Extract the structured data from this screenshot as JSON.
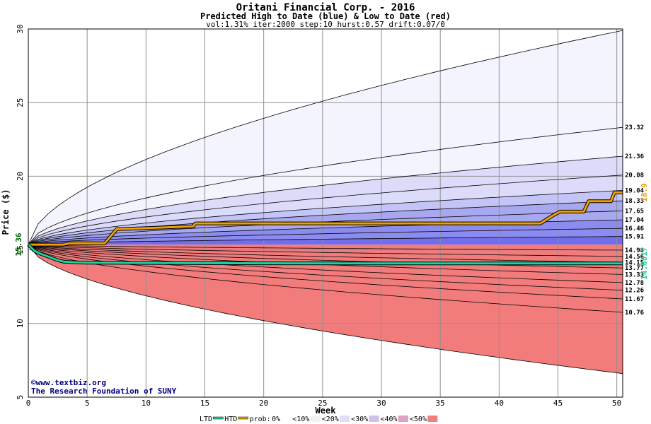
{
  "colors": {
    "high": "#f0a000",
    "low": "#20d0a0",
    "blue_bands": [
      "#f4f4ff",
      "#dcdcfa",
      "#c4c4f6",
      "#a8a8f0",
      "#8c8cf0",
      "#6f6fee"
    ],
    "red_bands": [
      "#fff0f0",
      "#fddede",
      "#fbc8c8",
      "#f8afaf",
      "#f59595",
      "#f27c7c"
    ],
    "legend_swatches": [
      "#ffffff",
      "#f4f0f8",
      "#e4dcf4",
      "#d0c0ec",
      "#e0a0c8",
      "#f08080"
    ]
  },
  "chart_data": {
    "type": "area",
    "title": "Oritani Financial Corp. - 2016",
    "subtitle": "Predicted High to Date (blue) &  Low to Date (red)",
    "params": "vol:1.31% iter:2000 step:10 hurst:0.57 drift:0.07/0",
    "xlabel": "Week",
    "ylabel": "Price ($)",
    "xlim": [
      0,
      50.5
    ],
    "ylim": [
      5,
      30
    ],
    "x_ticks": [
      0,
      5,
      10,
      15,
      20,
      25,
      30,
      35,
      40,
      45,
      50
    ],
    "y_ticks": [
      5,
      10,
      15,
      20,
      25,
      30
    ],
    "grid": true,
    "start_price": 15.36,
    "start_price_label": "15.36",
    "credit_line1": "©www.textbiz.org",
    "credit_line2": "The Research Foundation of SUNY",
    "upper_quantiles": [
      {
        "end": 29.9,
        "label": ""
      },
      {
        "end": 23.32,
        "label": "23.32"
      },
      {
        "end": 21.36,
        "label": "21.36"
      },
      {
        "end": 20.08,
        "label": "20.08"
      },
      {
        "end": 19.04,
        "label": "19.04"
      },
      {
        "end": 18.33,
        "label": "18.33"
      },
      {
        "end": 17.65,
        "label": "17.65"
      },
      {
        "end": 17.04,
        "label": "17.04"
      },
      {
        "end": 16.46,
        "label": "16.46"
      },
      {
        "end": 15.91,
        "label": "15.91"
      }
    ],
    "lower_quantiles": [
      {
        "end": 14.98,
        "label": "14.98"
      },
      {
        "end": 14.56,
        "label": "14.56"
      },
      {
        "end": 14.15,
        "label": "14.15"
      },
      {
        "end": 13.77,
        "label": "13.77"
      },
      {
        "end": 13.33,
        "label": "13.33"
      },
      {
        "end": 12.78,
        "label": "12.78"
      },
      {
        "end": 12.26,
        "label": "12.26"
      },
      {
        "end": 11.67,
        "label": "11.67"
      },
      {
        "end": 10.76,
        "label": "10.76"
      },
      {
        "end": 6.6,
        "label": ""
      }
    ],
    "series": [
      {
        "name": "HTD",
        "label": "18.9",
        "x": [
          0,
          3,
          3.5,
          6.5,
          7.5,
          14,
          14.2,
          43.5,
          44.3,
          44.7,
          45.2,
          47.2,
          47.6,
          49.5,
          49.8,
          50.5
        ],
        "y": [
          15.36,
          15.36,
          15.45,
          15.45,
          16.4,
          16.6,
          16.8,
          16.8,
          17.2,
          17.4,
          17.6,
          17.6,
          18.3,
          18.3,
          18.9,
          18.9
        ]
      },
      {
        "name": "LTD",
        "label": "14.0817",
        "x": [
          0,
          0.5,
          1,
          1.5,
          2,
          2.5,
          3,
          4,
          5,
          7,
          10,
          15,
          20,
          30,
          40,
          50.5
        ],
        "y": [
          15.36,
          14.95,
          14.75,
          14.6,
          14.45,
          14.3,
          14.2,
          14.15,
          14.13,
          14.12,
          14.11,
          14.1,
          14.09,
          14.08,
          14.082,
          14.0817
        ]
      }
    ],
    "legend": {
      "ltd": "LTD",
      "htd": "HTD",
      "prob": "prob:",
      "entries": [
        "0%",
        "<10%",
        "<20%",
        "<30%",
        "<40%",
        "<50%"
      ]
    }
  }
}
